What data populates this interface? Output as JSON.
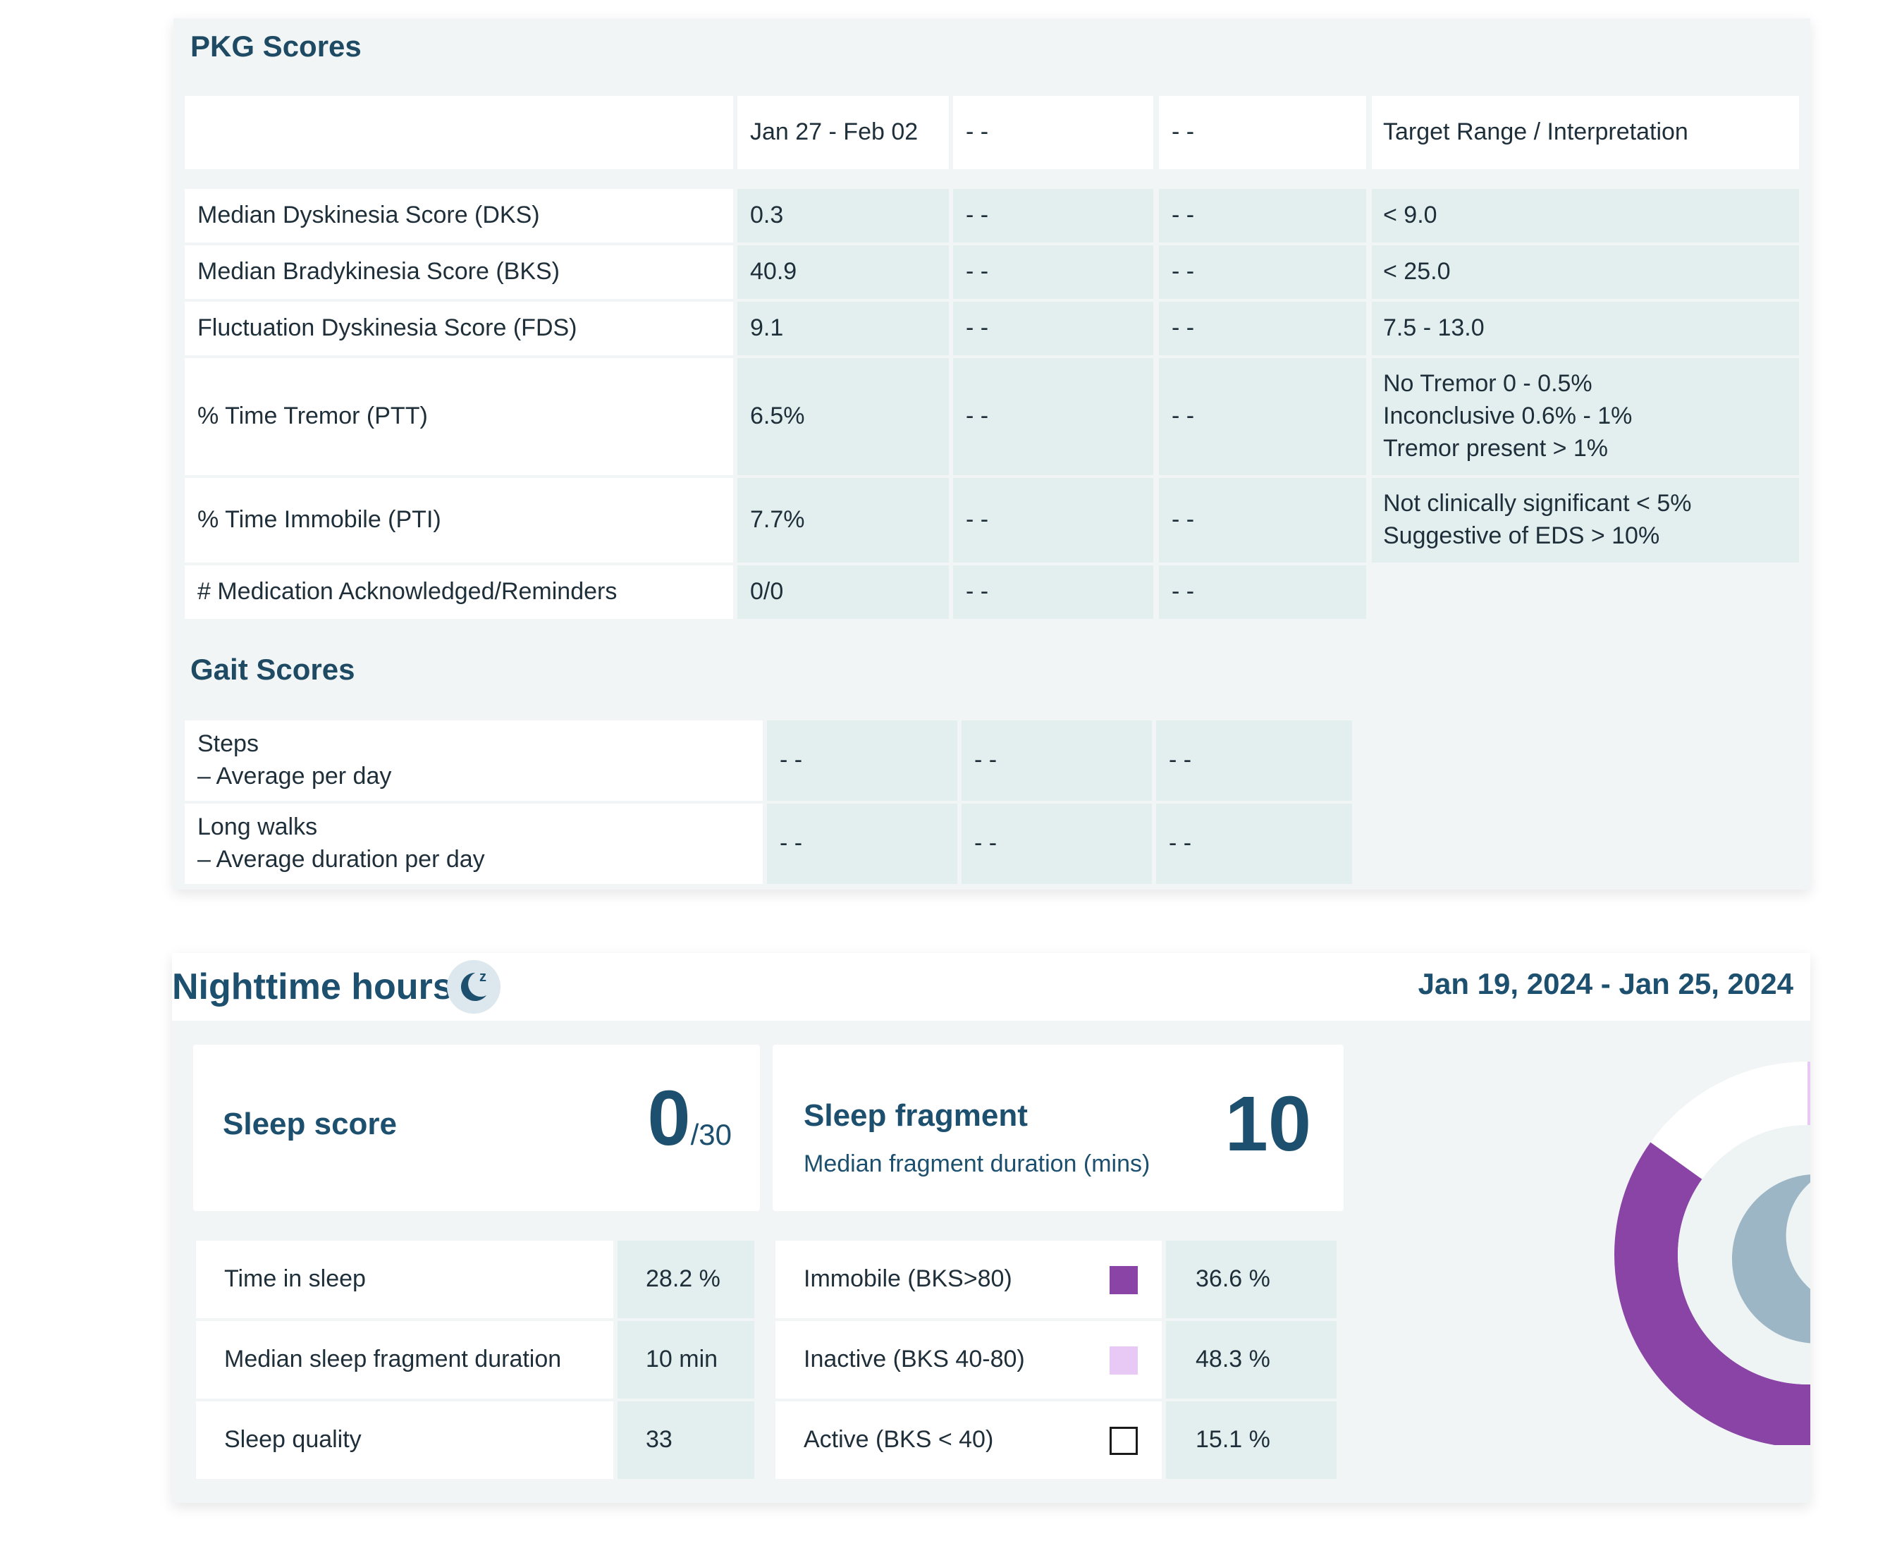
{
  "pkg": {
    "title": "PKG Scores",
    "columns": [
      "Jan 27 - Feb 02",
      "- -",
      "- -",
      "Target Range / Interpretation"
    ],
    "rows": [
      {
        "label": "Median Dyskinesia Score (DKS)",
        "values": [
          "0.3",
          "- -",
          "- -"
        ],
        "target": [
          "< 9.0"
        ]
      },
      {
        "label": "Median Bradykinesia Score (BKS)",
        "values": [
          "40.9",
          "- -",
          "- -"
        ],
        "target": [
          "< 25.0"
        ]
      },
      {
        "label": "Fluctuation Dyskinesia Score (FDS)",
        "values": [
          "9.1",
          "- -",
          "- -"
        ],
        "target": [
          "7.5 - 13.0"
        ]
      },
      {
        "label": "% Time Tremor (PTT)",
        "values": [
          "6.5%",
          "- -",
          "- -"
        ],
        "target": [
          "No Tremor 0 - 0.5%",
          "Inconclusive 0.6% - 1%",
          "Tremor present > 1%"
        ]
      },
      {
        "label": "% Time Immobile (PTI)",
        "values": [
          "7.7%",
          "- -",
          "- -"
        ],
        "target": [
          "Not clinically significant < 5%",
          "Suggestive of EDS > 10%"
        ]
      },
      {
        "label": "# Medication Acknowledged/Reminders",
        "values": [
          "0/0",
          "- -",
          "- -"
        ],
        "target": []
      }
    ]
  },
  "gait": {
    "title": "Gait Scores",
    "rows": [
      {
        "label_line1": "Steps",
        "label_line2": "– Average per day",
        "values": [
          "- -",
          "- -",
          "- -"
        ]
      },
      {
        "label_line1": "Long walks",
        "label_line2": "– Average duration per day",
        "values": [
          "- -",
          "- -",
          "- -"
        ]
      }
    ]
  },
  "nighttime": {
    "title": "Nighttime hours",
    "icon": "moon-z-icon",
    "date_range": "Jan 19, 2024 - Jan 25, 2024",
    "sleep_score": {
      "label": "Sleep score",
      "value": "0",
      "max": "/30"
    },
    "sleep_fragment": {
      "label": "Sleep fragment",
      "sublabel": "Median fragment duration (mins)",
      "value": "10"
    },
    "stats": [
      {
        "label": "Time in sleep",
        "value": "28.2 %"
      },
      {
        "label": "Median sleep fragment duration",
        "value": "10 min"
      },
      {
        "label": "Sleep quality",
        "value": "33"
      }
    ],
    "activity": [
      {
        "label": "Immobile (BKS>80)",
        "value": "36.6 %",
        "color": "#8a44a6"
      },
      {
        "label": "Inactive (BKS 40-80)",
        "value": "48.3 %",
        "color": "#e8c8f4"
      },
      {
        "label": "Active (BKS < 40)",
        "value": "15.1 %",
        "color": "#ffffff"
      }
    ]
  },
  "chart_data": {
    "type": "pie",
    "variant": "donut",
    "categories": [
      "Immobile (BKS>80)",
      "Inactive (BKS 40-80)",
      "Active (BKS < 40)"
    ],
    "values": [
      36.6,
      48.3,
      15.1
    ],
    "colors": [
      "#8a44a6",
      "#e8c8f4",
      "#ffffff"
    ]
  }
}
